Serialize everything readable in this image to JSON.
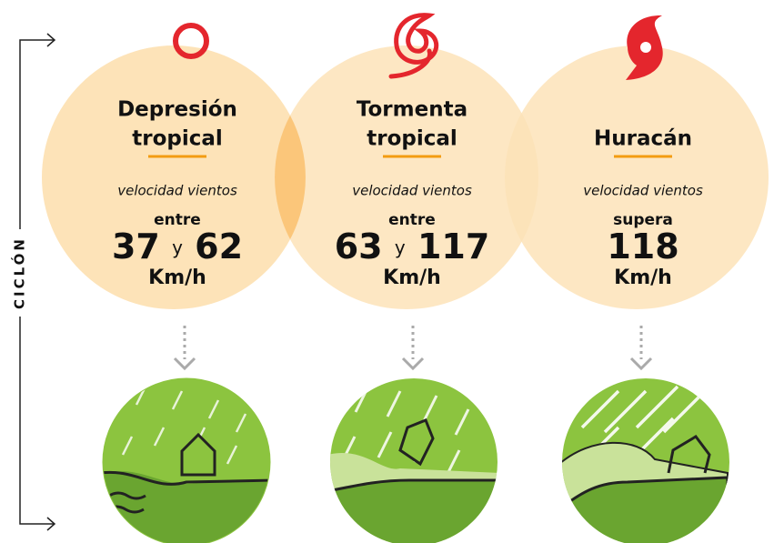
{
  "side_label": "CICLÓN",
  "stages": [
    {
      "title_lines": [
        "Depresión",
        "tropical"
      ],
      "caption": "velocidad vientos",
      "qualifier": "entre",
      "numbers": [
        37,
        62
      ],
      "joiner": "y",
      "unit": "Km/h"
    },
    {
      "title_lines": [
        "Tormenta",
        "tropical"
      ],
      "caption": "velocidad vientos",
      "qualifier": "entre",
      "numbers": [
        63,
        117
      ],
      "joiner": "y",
      "unit": "Km/h"
    },
    {
      "title_lines": [
        "Huracán"
      ],
      "caption": "velocidad vientos",
      "qualifier": "supera",
      "numbers": [
        118
      ],
      "unit": "Km/h"
    }
  ]
}
